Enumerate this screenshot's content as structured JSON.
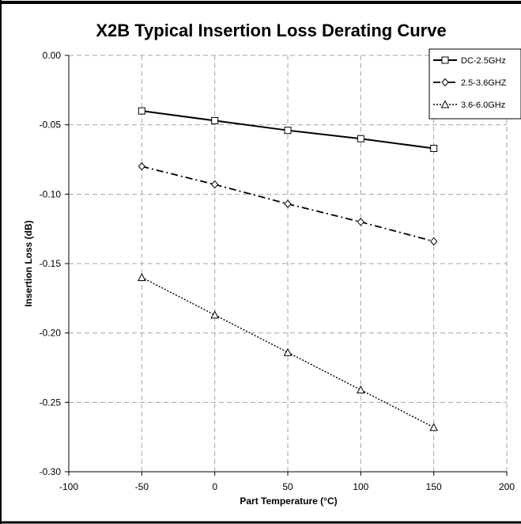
{
  "chart_data": {
    "type": "line",
    "title": "X2B Typical Insertion Loss Derating Curve",
    "xlabel": "Part Temperature (°C)",
    "ylabel": "Insertion Loss (dB)",
    "xlim": [
      -100,
      200
    ],
    "ylim": [
      -0.3,
      0.0
    ],
    "x_ticks": [
      -100,
      -50,
      0,
      50,
      100,
      150,
      200
    ],
    "x_tick_labels": [
      "-100",
      "-50",
      "0",
      "50",
      "100",
      "150",
      "200"
    ],
    "y_ticks": [
      0.0,
      -0.05,
      -0.1,
      -0.15,
      -0.2,
      -0.25,
      -0.3
    ],
    "y_tick_labels": [
      "0.00",
      "-0.05",
      "-0.10",
      "-0.15",
      "-0.20",
      "-0.25",
      "-0.30"
    ],
    "grid": true,
    "legend_position": "top-right",
    "series": [
      {
        "name": "DC-2.5GHz",
        "x": [
          -50,
          0,
          50,
          100,
          150
        ],
        "y": [
          -0.04,
          -0.047,
          -0.054,
          -0.06,
          -0.067
        ],
        "marker": "square",
        "line_style": "solid"
      },
      {
        "name": "2.5-3.6GHZ",
        "x": [
          -50,
          0,
          50,
          100,
          150
        ],
        "y": [
          -0.08,
          -0.093,
          -0.107,
          -0.12,
          -0.134
        ],
        "marker": "diamond",
        "line_style": "dashdot"
      },
      {
        "name": "3.6-6.0GHz",
        "x": [
          -50,
          0,
          50,
          100,
          150
        ],
        "y": [
          -0.16,
          -0.187,
          -0.214,
          -0.241,
          -0.268
        ],
        "marker": "triangle",
        "line_style": "dotted"
      }
    ]
  }
}
